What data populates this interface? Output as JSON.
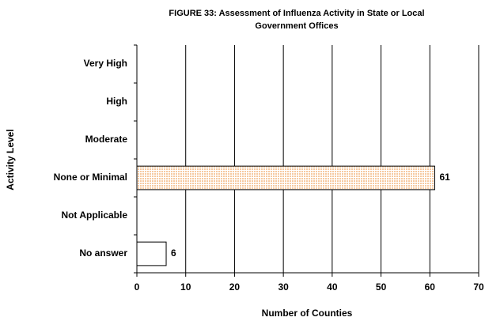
{
  "chart_data": {
    "type": "hbar",
    "title": [
      "FIGURE 33: Assessment of Influenza Activity in State or Local",
      "Government Offices"
    ],
    "x_label": "Number of Counties",
    "y_label": "Activity Level",
    "categories": [
      "Very High",
      "High",
      "Moderate",
      "None or Minimal",
      "Not Applicable",
      "No answer"
    ],
    "values": [
      null,
      null,
      null,
      61,
      null,
      6
    ],
    "colors": [
      "#fbe0c4",
      "#fbe0c4",
      "#fbe0c4",
      "#fbe0c4",
      "#ffffff",
      "#ffffff"
    ],
    "xlim": [
      0,
      70
    ],
    "xticks": [
      0,
      10,
      20,
      30,
      40,
      50,
      60,
      70
    ],
    "grid": true
  }
}
